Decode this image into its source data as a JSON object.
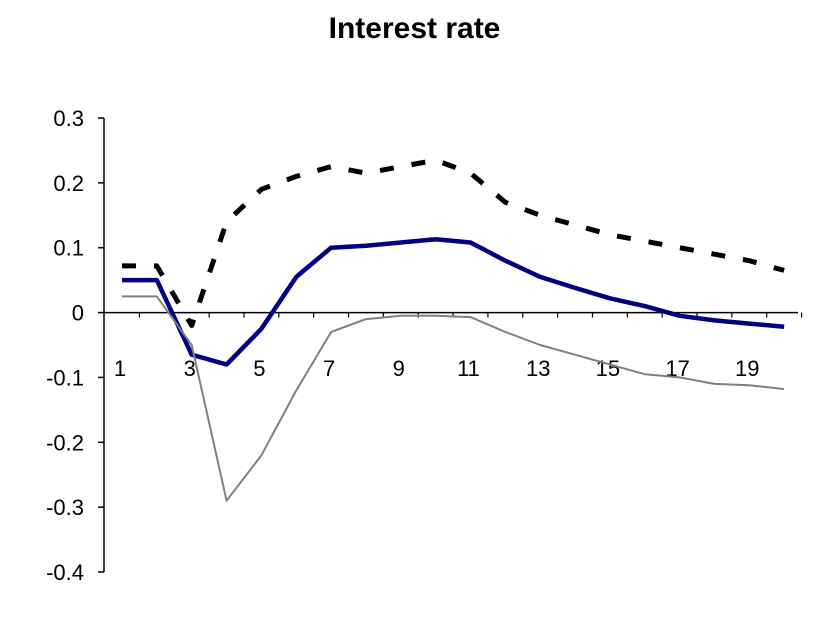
{
  "chart_data": {
    "type": "line",
    "title": "Interest rate",
    "xlabel": "",
    "ylabel": "",
    "x": [
      1,
      2,
      3,
      4,
      5,
      6,
      7,
      8,
      9,
      10,
      11,
      12,
      13,
      14,
      15,
      16,
      17,
      18,
      19,
      20
    ],
    "x_tick_labels": [
      "1",
      "3",
      "5",
      "7",
      "9",
      "11",
      "13",
      "15",
      "17",
      "19"
    ],
    "x_tick_values": [
      1,
      3,
      5,
      7,
      9,
      11,
      13,
      15,
      17,
      19
    ],
    "y_tick_labels": [
      "0.3",
      "0.2",
      "0.1",
      "0",
      "-0.1",
      "-0.2",
      "-0.3",
      "-0.4"
    ],
    "y_tick_values": [
      0.3,
      0.2,
      0.1,
      0,
      -0.1,
      -0.2,
      -0.3,
      -0.4
    ],
    "ylim": [
      -0.4,
      0.3
    ],
    "grid": false,
    "legend": "none",
    "series": [
      {
        "style": "dashed",
        "color": "#000000",
        "values": [
          0.072,
          0.072,
          -0.02,
          0.14,
          0.19,
          0.21,
          0.225,
          0.215,
          0.225,
          0.235,
          0.215,
          0.17,
          0.15,
          0.135,
          0.12,
          0.11,
          0.1,
          0.09,
          0.08,
          0.065
        ]
      },
      {
        "style": "solid-thick",
        "color": "#000080",
        "values": [
          0.05,
          0.05,
          -0.065,
          -0.08,
          -0.025,
          0.055,
          0.1,
          0.103,
          0.108,
          0.113,
          0.108,
          0.08,
          0.055,
          0.038,
          0.022,
          0.01,
          -0.005,
          -0.012,
          -0.017,
          -0.022
        ]
      },
      {
        "style": "solid-thin",
        "color": "#808080",
        "values": [
          0.025,
          0.025,
          -0.05,
          -0.29,
          -0.22,
          -0.12,
          -0.03,
          -0.01,
          -0.005,
          -0.005,
          -0.007,
          -0.03,
          -0.05,
          -0.065,
          -0.08,
          -0.095,
          -0.1,
          -0.11,
          -0.112,
          -0.118
        ]
      }
    ]
  }
}
